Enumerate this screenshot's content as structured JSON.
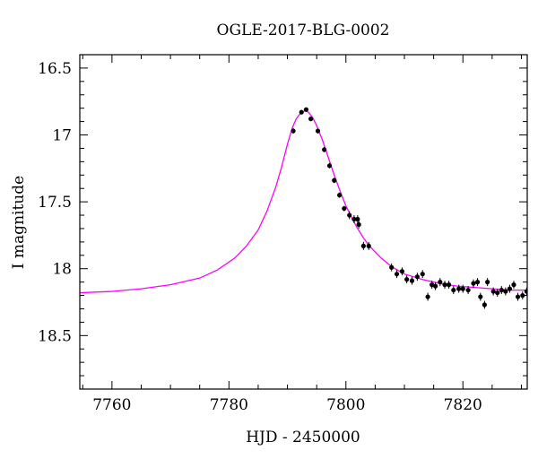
{
  "chart_data": {
    "type": "scatter",
    "title": "OGLE-2017-BLG-0002",
    "xlabel": "HJD - 2450000",
    "ylabel": "I magnitude",
    "xlim": [
      7754.5,
      7831
    ],
    "ylim": [
      18.9,
      16.4
    ],
    "y_inverted": true,
    "x_ticks": [
      7760,
      7780,
      7800,
      7820
    ],
    "x_tick_labels": [
      "7760",
      "7780",
      "7800",
      "7820"
    ],
    "y_ticks": [
      16.5,
      17,
      17.5,
      18,
      18.5
    ],
    "y_tick_labels": [
      "16.5",
      "17",
      "17.5",
      "18",
      "18.5"
    ],
    "grid": false,
    "series": [
      {
        "kind": "points",
        "color": "#000000",
        "x": [
          7791.0,
          7792.4,
          7793.2,
          7794.0,
          7795.2,
          7796.3,
          7797.2,
          7798.0,
          7798.9,
          7799.7,
          7800.6,
          7801.4,
          7802.2,
          7802.0,
          7803.0,
          7803.9,
          7807.8,
          7808.7,
          7809.6,
          7810.4,
          7811.3,
          7812.2,
          7813.1,
          7814.0,
          7814.7,
          7815.3,
          7816.1,
          7816.9,
          7817.6,
          7818.4,
          7819.3,
          7820.0,
          7820.9,
          7821.8,
          7822.5,
          7823.0,
          7823.7,
          7824.2,
          7825.2,
          7825.9,
          7826.6,
          7827.3,
          7828.0,
          7828.7,
          7829.4,
          7830.2,
          7830.9
        ],
        "y": [
          16.97,
          16.83,
          16.81,
          16.88,
          16.97,
          17.11,
          17.23,
          17.34,
          17.45,
          17.55,
          17.6,
          17.63,
          17.67,
          17.63,
          17.83,
          17.83,
          17.99,
          18.04,
          18.02,
          18.08,
          18.09,
          18.06,
          18.04,
          18.21,
          18.12,
          18.13,
          18.1,
          18.12,
          18.12,
          18.16,
          18.15,
          18.15,
          18.16,
          18.11,
          18.1,
          18.21,
          18.27,
          18.1,
          18.17,
          18.18,
          18.16,
          18.17,
          18.15,
          18.12,
          18.21,
          18.2,
          18.17
        ],
        "err": [
          0.02,
          0.01,
          0.01,
          0.01,
          0.02,
          0.02,
          0.02,
          0.02,
          0.02,
          0.02,
          0.03,
          0.03,
          0.03,
          0.03,
          0.03,
          0.03,
          0.03,
          0.03,
          0.03,
          0.03,
          0.03,
          0.03,
          0.03,
          0.03,
          0.03,
          0.03,
          0.03,
          0.03,
          0.03,
          0.03,
          0.03,
          0.03,
          0.03,
          0.03,
          0.03,
          0.03,
          0.03,
          0.03,
          0.03,
          0.03,
          0.03,
          0.03,
          0.03,
          0.03,
          0.03,
          0.03,
          0.03
        ]
      },
      {
        "kind": "line",
        "color": "#ff00ff",
        "x": [
          7754.5,
          7760,
          7765,
          7770,
          7775,
          7778,
          7781,
          7783,
          7785,
          7786.5,
          7788,
          7789,
          7790,
          7790.8,
          7791.5,
          7792.0,
          7792.5,
          7793.0,
          7793.6,
          7794.3,
          7795.0,
          7796.0,
          7797.0,
          7798.0,
          7799.0,
          7800.0,
          7801.0,
          7802.0,
          7803.0,
          7804.0,
          7806.0,
          7808.0,
          7810.0,
          7813.0,
          7816.0,
          7819.0,
          7822.0,
          7825.0,
          7828.0,
          7831.0
        ],
        "y": [
          18.18,
          18.17,
          18.15,
          18.12,
          18.07,
          18.01,
          17.92,
          17.83,
          17.71,
          17.57,
          17.39,
          17.24,
          17.07,
          16.95,
          16.88,
          16.85,
          16.83,
          16.82,
          16.83,
          16.87,
          16.93,
          17.04,
          17.17,
          17.3,
          17.42,
          17.53,
          17.62,
          17.7,
          17.77,
          17.83,
          17.92,
          17.99,
          18.04,
          18.08,
          18.11,
          18.13,
          18.14,
          18.15,
          18.16,
          18.16
        ]
      }
    ]
  }
}
